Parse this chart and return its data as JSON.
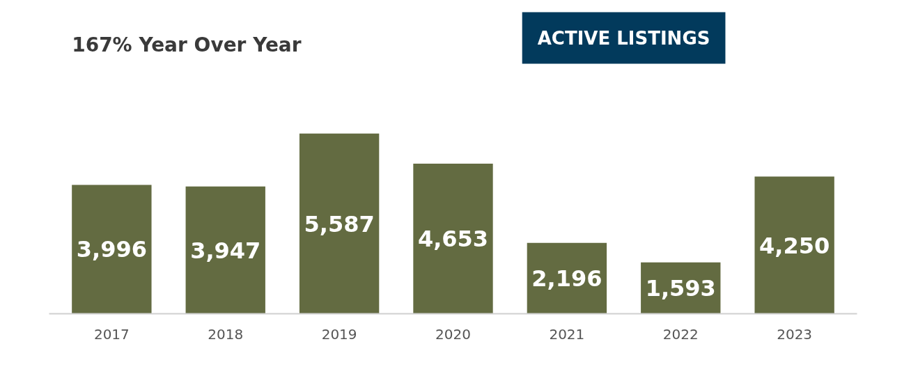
{
  "chart_data": {
    "type": "bar",
    "title": "ACTIVE LISTINGS",
    "subtitle": "167% Year Over Year",
    "categories": [
      "2017",
      "2018",
      "2019",
      "2020",
      "2021",
      "2022",
      "2023"
    ],
    "values": [
      3996,
      3947,
      5587,
      4653,
      2196,
      1593,
      4250
    ],
    "value_labels": [
      "3,996",
      "3,947",
      "5,587",
      "4,653",
      "2,196",
      "1,593",
      "4,250"
    ],
    "color": "#636b41",
    "grid": false
  }
}
